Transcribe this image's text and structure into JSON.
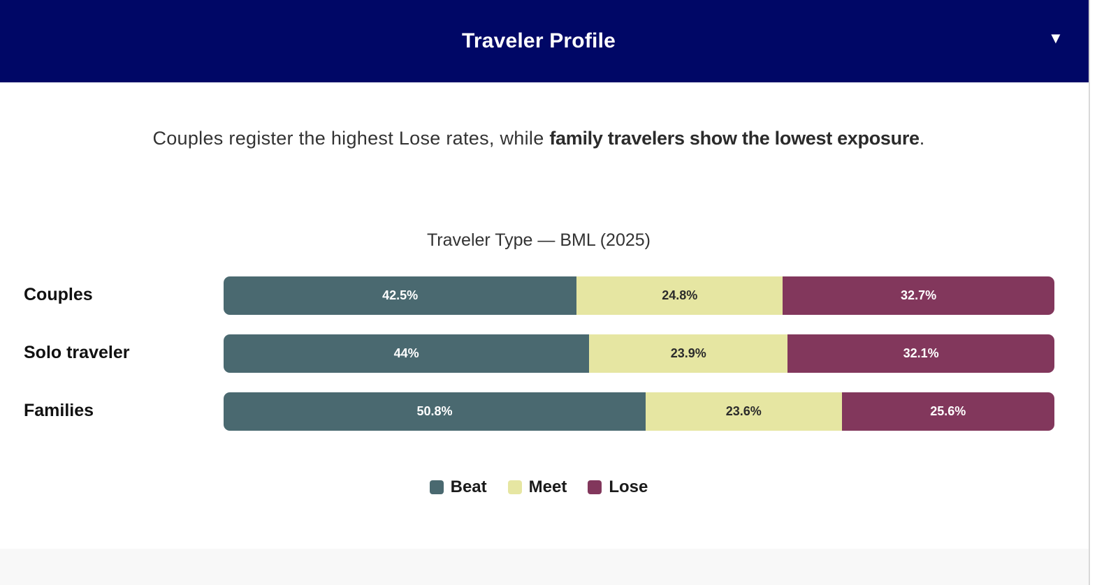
{
  "header": {
    "title": "Traveler Profile",
    "toggle_icon": "▼"
  },
  "summary": {
    "text_plain": "Couples register the highest Lose rates, while ",
    "text_bold": "family travelers show the lowest exposure",
    "text_end": "."
  },
  "colors": {
    "header_bg": "#000766",
    "beat": "#4a6970",
    "meet": "#e6e6a2",
    "lose": "#82375c"
  },
  "chart_data": {
    "type": "bar",
    "orientation": "horizontal",
    "stacked": true,
    "normalized": true,
    "title": "Traveler Type — BML (2025)",
    "categories": [
      "Couples",
      "Solo traveler",
      "Families"
    ],
    "series": [
      {
        "name": "Beat",
        "values": [
          42.5,
          44,
          50.8
        ],
        "labels": [
          "42.5%",
          "44%",
          "50.8%"
        ],
        "color": "#4a6970"
      },
      {
        "name": "Meet",
        "values": [
          24.8,
          23.9,
          23.6
        ],
        "labels": [
          "24.8%",
          "23.9%",
          "23.6%"
        ],
        "color": "#e6e6a2"
      },
      {
        "name": "Lose",
        "values": [
          32.7,
          32.1,
          25.6
        ],
        "labels": [
          "32.7%",
          "32.1%",
          "25.6%"
        ],
        "color": "#82375c"
      }
    ],
    "xlabel": "",
    "ylabel": "",
    "xlim": [
      0,
      100
    ],
    "grid": false,
    "legend_position": "bottom",
    "legend": [
      "Beat",
      "Meet",
      "Lose"
    ]
  }
}
